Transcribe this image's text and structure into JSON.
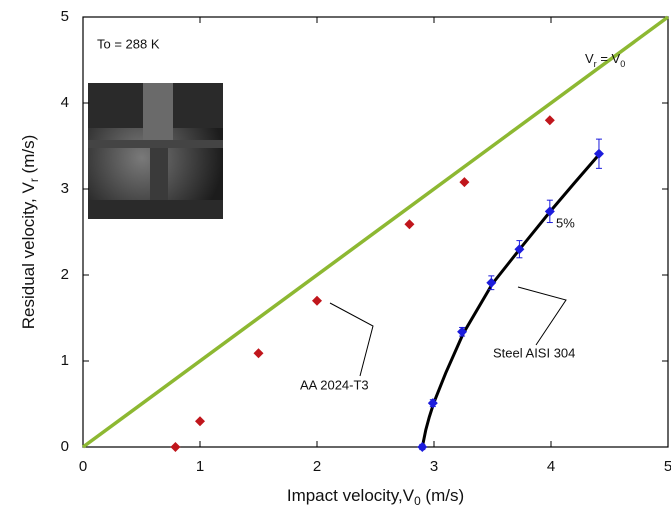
{
  "chart_data": {
    "type": "scatter",
    "annotation_temp": "To = 288 K",
    "xlabel": [
      "Impact velocity,V",
      "0",
      " (m/s)"
    ],
    "ylabel": [
      "Residual velocity, V",
      "r",
      " (m/s)"
    ],
    "line_label": [
      "V",
      "r",
      " = V",
      "0"
    ],
    "xlim": [
      0,
      5
    ],
    "ylim": [
      0,
      5
    ],
    "xticks": [
      0,
      1,
      2,
      3,
      4,
      5
    ],
    "yticks": [
      0,
      1,
      2,
      3,
      4,
      5
    ],
    "reference_line": {
      "x": [
        0,
        5
      ],
      "values": [
        0,
        5
      ],
      "color": "#8db832"
    },
    "series": [
      {
        "name": "AA 2024-T3",
        "color": "#c0161c",
        "x": [
          0.79,
          1.0,
          1.5,
          2.0,
          2.79,
          3.26,
          3.99
        ],
        "values": [
          0,
          0.3,
          1.09,
          1.7,
          2.59,
          3.08,
          3.8
        ]
      },
      {
        "name": "Steel AISI 304",
        "color": "#1c1cdc",
        "x": [
          2.9,
          2.99,
          3.24,
          3.49,
          3.73,
          3.99,
          4.41
        ],
        "values": [
          0,
          0.51,
          1.34,
          1.91,
          2.3,
          2.74,
          3.41
        ],
        "errors": [
          0.03,
          0.04,
          0.05,
          0.08,
          0.1,
          0.13,
          0.17
        ],
        "error_label": "5%"
      }
    ],
    "fit": {
      "color": "#000000",
      "x": [
        2.9,
        2.93,
        2.96,
        3.0,
        3.1,
        3.25,
        3.5,
        3.75,
        4.0,
        4.2,
        4.41
      ],
      "values": [
        0,
        0.2,
        0.35,
        0.52,
        0.86,
        1.32,
        1.9,
        2.33,
        2.75,
        3.07,
        3.4
      ]
    }
  }
}
